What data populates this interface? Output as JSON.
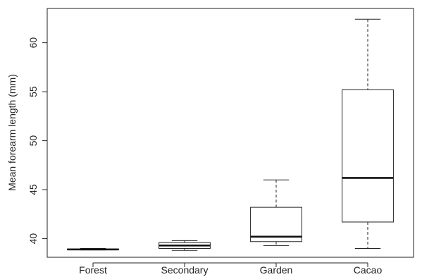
{
  "chart_data": {
    "type": "boxplot",
    "title": "",
    "xlabel": "",
    "ylabel": "Mean forearm length (mm)",
    "ylim": [
      38.1,
      63.5
    ],
    "y_ticks": [
      40,
      45,
      50,
      55,
      60
    ],
    "grid": false,
    "legend": "none",
    "categories": [
      "Forest",
      "Secondary",
      "Garden",
      "Cacao"
    ],
    "boxes": [
      {
        "category": "Forest",
        "whisker_low": 38.85,
        "q1": 38.85,
        "median": 38.9,
        "q3": 38.95,
        "whisker_high": 39.0
      },
      {
        "category": "Secondary",
        "whisker_low": 38.8,
        "q1": 39.0,
        "median": 39.3,
        "q3": 39.6,
        "whisker_high": 39.8
      },
      {
        "category": "Garden",
        "whisker_low": 39.3,
        "q1": 39.7,
        "median": 40.2,
        "q3": 43.2,
        "whisker_high": 46.0
      },
      {
        "category": "Cacao",
        "whisker_low": 39.0,
        "q1": 41.7,
        "median": 46.2,
        "q3": 55.2,
        "whisker_high": 62.4
      }
    ]
  }
}
